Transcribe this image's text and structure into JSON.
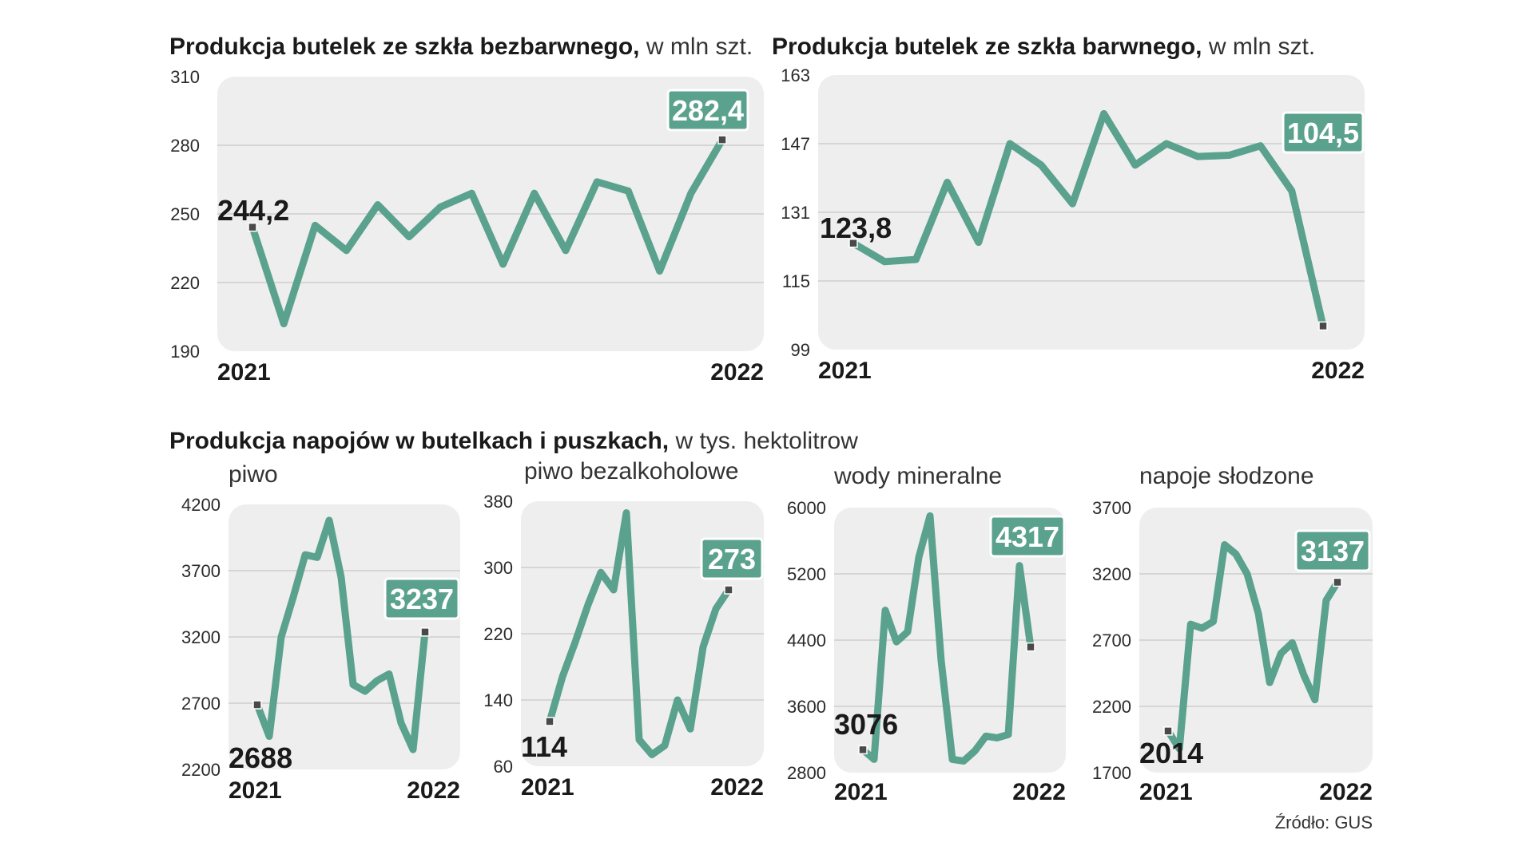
{
  "titles": {
    "top_left_bold": "Produkcja butelek ze szkła bezbarwnego,",
    "top_left_unit": " w mln szt.",
    "top_right_bold": "Produkcja butelek ze szkła barwnego,",
    "top_right_unit": " w mln szt.",
    "bottom_bold": "Produkcja napojów w butelkach i puszkach,",
    "bottom_unit": " w tys. hektolitrow"
  },
  "source": "Źródło: GUS",
  "colors": {
    "line": "#5aa28d",
    "badge": "#5aa28d",
    "panel": "#eeeeee",
    "grid": "#d6d6d6",
    "marker": "#4a4a4a"
  },
  "chart_data": [
    {
      "id": "bezbarwne",
      "type": "line",
      "title": "Produkcja butelek ze szkła bezbarwnego, w mln szt.",
      "subtitle": "",
      "x_start_label": "2021",
      "x_end_label": "2022",
      "y_ticks": [
        "310",
        "280",
        "250",
        "220",
        "190"
      ],
      "ylim": [
        190,
        310
      ],
      "values": [
        244.2,
        202,
        245,
        234,
        254,
        240,
        253,
        259,
        228,
        259,
        234,
        264,
        260,
        225,
        259,
        282.4
      ],
      "start_label": "244,2",
      "end_label": "282,4"
    },
    {
      "id": "barwne",
      "type": "line",
      "title": "Produkcja butelek ze szkła barwnego, w mln szt.",
      "subtitle": "",
      "x_start_label": "2021",
      "x_end_label": "2022",
      "y_ticks": [
        "163",
        "147",
        "131",
        "115",
        "99"
      ],
      "ylim": [
        99,
        163
      ],
      "values": [
        123.8,
        119.5,
        120,
        138,
        124,
        147,
        142,
        133,
        154,
        142,
        147,
        144,
        144.3,
        146.5,
        136,
        104.5
      ],
      "start_label": "123,8",
      "end_label": "104,5"
    },
    {
      "id": "piwo",
      "type": "line",
      "title": "",
      "subtitle": "piwo",
      "x_start_label": "2021",
      "x_end_label": "2022",
      "y_ticks": [
        "4200",
        "3700",
        "3200",
        "2700",
        "2200"
      ],
      "ylim": [
        2200,
        4200
      ],
      "values": [
        2688,
        2450,
        3200,
        3500,
        3820,
        3800,
        4080,
        3650,
        2840,
        2790,
        2870,
        2920,
        2550,
        2350,
        3237
      ],
      "start_label": "2688",
      "end_label": "3237"
    },
    {
      "id": "piwo-bezalkoholowe",
      "type": "line",
      "title": "",
      "subtitle": "piwo bezalkoholowe",
      "x_start_label": "2021",
      "x_end_label": "2022",
      "y_ticks": [
        "380",
        "300",
        "220",
        "140",
        "60"
      ],
      "ylim": [
        60,
        380
      ],
      "values": [
        114,
        168,
        210,
        255,
        294,
        273,
        366,
        92,
        74,
        85,
        140,
        105,
        204,
        250,
        273
      ],
      "start_label": "114",
      "end_label": "273"
    },
    {
      "id": "wody-mineralne",
      "type": "line",
      "title": "",
      "subtitle": "wody mineralne",
      "x_start_label": "2021",
      "x_end_label": "2022",
      "y_ticks": [
        "6000",
        "5200",
        "4400",
        "3600",
        "2800"
      ],
      "ylim": [
        2800,
        6000
      ],
      "values": [
        3076,
        2960,
        4760,
        4380,
        4500,
        5400,
        5900,
        4150,
        2960,
        2940,
        3060,
        3240,
        3220,
        3260,
        5300,
        4317
      ],
      "start_label": "3076",
      "end_label": "4317"
    },
    {
      "id": "napoje-slodzone",
      "type": "line",
      "title": "",
      "subtitle": "napoje słodzone",
      "x_start_label": "2021",
      "x_end_label": "2022",
      "y_ticks": [
        "3700",
        "3200",
        "2700",
        "2200",
        "1700"
      ],
      "ylim": [
        1700,
        3700
      ],
      "values": [
        2014,
        1880,
        2820,
        2790,
        2840,
        3420,
        3350,
        3200,
        2900,
        2380,
        2600,
        2680,
        2440,
        2250,
        3000,
        3137
      ],
      "start_label": "2014",
      "end_label": "3137"
    }
  ]
}
